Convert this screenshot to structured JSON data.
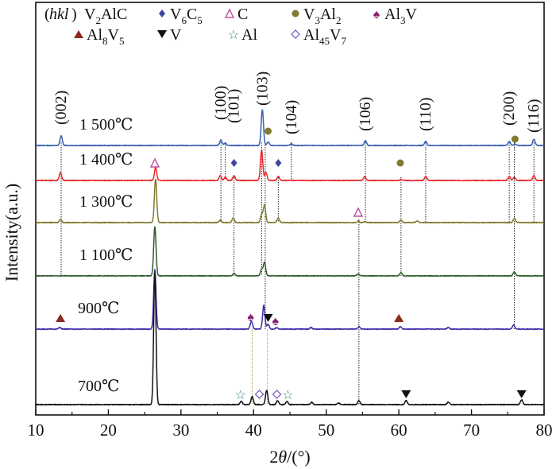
{
  "chart_data": {
    "type": "line",
    "title": "",
    "xlabel": "2θ/(°)",
    "ylabel": "Intensity(a.u.)",
    "xlim": [
      10,
      80
    ],
    "xticks": [
      10,
      20,
      30,
      40,
      50,
      60,
      70,
      80
    ],
    "grid": false,
    "legend": {
      "placement": "top",
      "header": "(hkl)",
      "entries": [
        {
          "label": "V2AlC",
          "base": "V",
          "sub": "2",
          "rest": "AlC",
          "symbol": "none",
          "color": "#111111"
        },
        {
          "label": "V6C5",
          "base": "V",
          "sub": "6",
          "rest": "C",
          "sub2": "5",
          "symbol": "diamond",
          "color": "#3c45a0"
        },
        {
          "label": "C",
          "base": "C",
          "symbol": "open-triangle",
          "color": "#c050a0"
        },
        {
          "label": "V3Al2",
          "base": "V",
          "sub": "3",
          "rest": "Al",
          "sub2": "2",
          "symbol": "circle",
          "color": "#827a30"
        },
        {
          "label": "Al3V",
          "base": "Al",
          "sub": "3",
          "rest": "V",
          "symbol": "spade",
          "color": "#8a2070"
        },
        {
          "label": "Al8V5",
          "base": "Al",
          "sub": "8",
          "rest": "V",
          "sub2": "5",
          "symbol": "triangle",
          "color": "#8b2a1e"
        },
        {
          "label": "V",
          "base": "V",
          "symbol": "down-triangle",
          "color": "#111111"
        },
        {
          "label": "Al",
          "base": "Al",
          "symbol": "star",
          "color": "#3a8a80"
        },
        {
          "label": "Al45V7",
          "base": "Al",
          "sub": "45",
          "rest": "V",
          "sub2": "7",
          "symbol": "open-diamond",
          "color": "#7050c0"
        }
      ]
    },
    "series": [
      {
        "name": "1 500℃",
        "color": "#3a5fb0",
        "peaks": [
          [
            13.5,
            12
          ],
          [
            35.5,
            7
          ],
          [
            36.1,
            3
          ],
          [
            41.2,
            45
          ],
          [
            42.0,
            4
          ],
          [
            45.2,
            2
          ],
          [
            55.4,
            6
          ],
          [
            63.7,
            5
          ],
          [
            75.2,
            5
          ],
          [
            76.0,
            2
          ],
          [
            78.6,
            8
          ]
        ]
      },
      {
        "name": "1 400℃",
        "color": "#e8262a",
        "peaks": [
          [
            13.4,
            10
          ],
          [
            26.5,
            16
          ],
          [
            35.4,
            6
          ],
          [
            36.1,
            4
          ],
          [
            37.3,
            6
          ],
          [
            41.1,
            38
          ],
          [
            41.7,
            10
          ],
          [
            43.4,
            5
          ],
          [
            55.3,
            5
          ],
          [
            60.3,
            1
          ],
          [
            63.7,
            5
          ],
          [
            75.2,
            5
          ],
          [
            75.9,
            4
          ],
          [
            78.6,
            6
          ]
        ]
      },
      {
        "name": "1 300℃",
        "color": "#7d7a2a",
        "peaks": [
          [
            13.4,
            4
          ],
          [
            26.5,
            55
          ],
          [
            35.4,
            3
          ],
          [
            37.2,
            6
          ],
          [
            41.1,
            10
          ],
          [
            41.5,
            22
          ],
          [
            43.4,
            6
          ],
          [
            54.4,
            2
          ],
          [
            55.3,
            1
          ],
          [
            60.3,
            3
          ],
          [
            62.5,
            2
          ],
          [
            75.9,
            5
          ]
        ]
      },
      {
        "name": "1 100℃",
        "color": "#2f5a2a",
        "peaks": [
          [
            26.4,
            62
          ],
          [
            37.3,
            3
          ],
          [
            41.1,
            8
          ],
          [
            41.5,
            17
          ],
          [
            54.4,
            2
          ],
          [
            60.3,
            4
          ],
          [
            75.9,
            5
          ]
        ]
      },
      {
        "name": "900℃",
        "color": "#3b2fa8",
        "peaks": [
          [
            13.3,
            2
          ],
          [
            26.4,
            75
          ],
          [
            39.7,
            10
          ],
          [
            41.4,
            30
          ],
          [
            42.0,
            6
          ],
          [
            43.2,
            2
          ],
          [
            47.9,
            2
          ],
          [
            54.5,
            3
          ],
          [
            60.2,
            3
          ],
          [
            66.8,
            2
          ],
          [
            75.8,
            5
          ]
        ]
      },
      {
        "name": "700℃",
        "color": "#111111",
        "peaks": [
          [
            26.4,
            165
          ],
          [
            38.3,
            4
          ],
          [
            39.8,
            10
          ],
          [
            41.8,
            18
          ],
          [
            43.3,
            5
          ],
          [
            44.6,
            4
          ],
          [
            48.0,
            3
          ],
          [
            51.7,
            2
          ],
          [
            54.5,
            5
          ],
          [
            61.0,
            5
          ],
          [
            66.8,
            3
          ],
          [
            76.9,
            6
          ]
        ]
      }
    ],
    "hkl_labels": [
      {
        "text": "(002)",
        "x": 13.5
      },
      {
        "text": "(100)",
        "x": 35.5
      },
      {
        "text": "(101)",
        "x": 37.3
      },
      {
        "text": "(103)",
        "x": 41.2
      },
      {
        "text": "(104)",
        "x": 45.2
      },
      {
        "text": "(106)",
        "x": 55.4
      },
      {
        "text": "(110)",
        "x": 63.7
      },
      {
        "text": "(200)",
        "x": 75.2
      },
      {
        "text": "(116)",
        "x": 78.6
      }
    ],
    "markers": [
      {
        "phase": "V3Al2",
        "x": 42.0,
        "series": 0
      },
      {
        "phase": "V3Al2",
        "x": 76.0,
        "series": 0
      },
      {
        "phase": "C",
        "x": 26.4,
        "series": 1
      },
      {
        "phase": "V6C5",
        "x": 37.3,
        "series": 1
      },
      {
        "phase": "V6C5",
        "x": 43.4,
        "series": 1
      },
      {
        "phase": "V3Al2",
        "x": 60.2,
        "series": 1
      },
      {
        "phase": "C",
        "x": 54.4,
        "series": 2
      },
      {
        "phase": "Al8V5",
        "x": 13.4,
        "series": 4
      },
      {
        "phase": "Al3V",
        "x": 39.6,
        "series": 4
      },
      {
        "phase": "V",
        "x": 42.0,
        "series": 4
      },
      {
        "phase": "Al3V",
        "x": 43.0,
        "series": 4
      },
      {
        "phase": "Al8V5",
        "x": 60.0,
        "series": 4
      },
      {
        "phase": "Al",
        "x": 38.2,
        "series": 5
      },
      {
        "phase": "Al45V7",
        "x": 40.8,
        "series": 5
      },
      {
        "phase": "Al45V7",
        "x": 43.2,
        "series": 5
      },
      {
        "phase": "Al",
        "x": 44.7,
        "series": 5
      },
      {
        "phase": "V",
        "x": 61.0,
        "series": 5
      },
      {
        "phase": "V",
        "x": 76.9,
        "series": 5
      }
    ]
  }
}
